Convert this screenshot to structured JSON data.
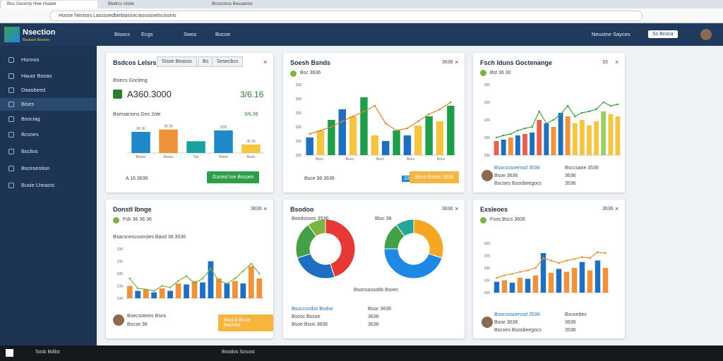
{
  "browser": {
    "tabs": [
      "Bisc Gecenty Hwe Hsaber",
      "Bledrcs Uiotie",
      "Blcorcorss Beuuanios"
    ],
    "url": "Hoose Nesisos  Lasssoedbiebiasioic/aoussoelsciosnis"
  },
  "app": {
    "brand": "Nsection",
    "brand_sub": "Bsoaoce Beoeon",
    "nav": [
      "Bisocs",
      "Ecgs",
      "Swos",
      "Bocoe"
    ],
    "user": "Neustne Sayces",
    "badge": "Ss Bcoca"
  },
  "sidebar": [
    "Hsnnos",
    "Hauor Bsoas",
    "Daasbeed",
    "Bises",
    "Bsociag",
    "Bcsnes",
    "Bsclios",
    "Bscesestion",
    "Busie Lheacts"
  ],
  "cards": [
    {
      "title": "Bsdcos Lelsrs",
      "tabs": [
        "Sisoe Beasos",
        "Bs",
        "Sesecbcs"
      ],
      "kpi_label": "Bsiecs Gocleng",
      "kpi": "A360.3000",
      "kpi_change": "3/6.16",
      "sub_label": "Bsesiacions Ges 2ote",
      "sub_value": "3/6.36",
      "footer": "A 16 3636",
      "button": "Gucesl Ioe Bscoes",
      "chart": {
        "type": "bar",
        "ylim": [
          0,
          60
        ],
        "categories": [
          "Bsoes",
          "Bsoes",
          "Tos",
          "Bioes",
          "Bsoe"
        ],
        "values": [
          45,
          50,
          25,
          48,
          18
        ],
        "value_labels": [
          "36 36",
          "36 36",
          "",
          "3/36",
          "36 36"
        ],
        "colors": [
          "#1e88c8",
          "#f0923a",
          "#1aa0a0",
          "#1e88c8",
          "#f5c542"
        ]
      }
    },
    {
      "title": "Soesh Bsnds",
      "meta": "3636",
      "sub_label": "Bsc 3636",
      "footer": "Bsce 36 3636",
      "button": "Bsco Eseoc 3836",
      "badge": "336",
      "chart": {
        "type": "bar",
        "ylim": [
          0,
          100
        ],
        "ytick_labels": [
          "336",
          "336",
          "336",
          "336",
          "336",
          "336"
        ],
        "categories": [
          "Bsco",
          "Bsco",
          "Bsco",
          "Bsco",
          "Bsco"
        ],
        "values": [
          25,
          35,
          50,
          65,
          55,
          82,
          28,
          20,
          35,
          28,
          42,
          55,
          48,
          70
        ],
        "colors": [
          "#1e6fc0",
          "#f5c542",
          "#1e9e4a",
          "#1e6fc0",
          "#f5c542",
          "#1e9e4a",
          "#f5c542",
          "#1e6fc0",
          "#1e9e4a",
          "#1e6fc0",
          "#f5c542",
          "#1e9e4a",
          "#f5c542",
          "#1e9e4a"
        ],
        "line": [
          30,
          35,
          40,
          48,
          55,
          62,
          70,
          45,
          35,
          38,
          48,
          58,
          65,
          75
        ],
        "line_color": "#d9822b"
      }
    },
    {
      "title": "Fsch Iduns Goctenange",
      "meta": "33",
      "sub_label": "Bst 36 30",
      "legend": [
        "Bsocsssoerssd 3536",
        "Bsoe 3636",
        "Bscoes Bsosbeegocs"
      ],
      "legend_values": [
        "Bsccsaoe 3536",
        "3636",
        "3536"
      ],
      "chart": {
        "type": "bar",
        "ylim": [
          0,
          100
        ],
        "ytick_labels": [
          "336",
          "336",
          "336",
          "336",
          "336"
        ],
        "values": [
          20,
          22,
          25,
          28,
          30,
          32,
          50,
          45,
          40,
          60,
          55,
          45,
          50,
          42,
          48,
          62,
          58,
          55
        ],
        "colors": [
          "#e8604c",
          "#1e6fc0",
          "#f0923a",
          "#1e6fc0",
          "#e8604c",
          "#1e6fc0",
          "#e8604c",
          "#1e6fc0",
          "#f0923a",
          "#1e6fc0",
          "#f0923a",
          "#f5c542",
          "#f5c542",
          "#f5c542",
          "#f5c542",
          "#9ccc65",
          "#f5c542",
          "#f5c542"
        ],
        "line": [
          25,
          28,
          30,
          35,
          38,
          40,
          62,
          45,
          50,
          58,
          70,
          55,
          60,
          62,
          65,
          75,
          70,
          72
        ],
        "line_color": "#43a047"
      }
    },
    {
      "title": "Donstl Ibnge",
      "meta": "3636",
      "sub_label": "Fsh 36 36 36",
      "sub_label2": "Bsacsnescoonsles Basd 36 3536",
      "legend": "Bsecsoteeis Bsns",
      "legend2": "Bscse 36",
      "button": "Bsocd Bcoe Bacoes",
      "chart": {
        "type": "bar",
        "ylim": [
          0,
          100
        ],
        "ytick_labels": [
          "336",
          "336",
          "336",
          "336",
          "336"
        ],
        "values": [
          25,
          15,
          18,
          12,
          20,
          15,
          30,
          28,
          35,
          32,
          75,
          40,
          30,
          35,
          30,
          65,
          40
        ],
        "colors": [
          "#f0923a",
          "#1e6fc0",
          "#f0923a",
          "#1e6fc0",
          "#f0923a",
          "#1e6fc0",
          "#f0923a",
          "#1e6fc0",
          "#f0923a",
          "#1e6fc0",
          "#1e6fc0",
          "#f0923a",
          "#1e6fc0",
          "#f0923a",
          "#1e6fc0",
          "#f0923a",
          "#f0923a"
        ],
        "line": [
          40,
          20,
          18,
          15,
          25,
          22,
          35,
          45,
          30,
          40,
          60,
          35,
          30,
          40,
          55,
          70,
          50
        ],
        "line_color": "#7cb342"
      }
    },
    {
      "title": "Bsodoo",
      "meta": "3636",
      "donut_labels": [
        "Boodssoos 3536",
        "Bloc 36"
      ],
      "caption": "Bsonsassobb Bsoec",
      "legend": [
        "Bsoccsodss Bsdse",
        "Bsosc Bssoe",
        "Bsoe Bsos 3836"
      ],
      "legend_values": [
        "Bsoc 3636",
        "3636",
        "3636"
      ],
      "chart": {
        "type": "donut",
        "donuts": [
          {
            "values": [
              45,
              25,
              20,
              10
            ],
            "colors": [
              "#e53935",
              "#1e6fc0",
              "#43a047",
              "#7cb342"
            ]
          },
          {
            "values": [
              30,
              45,
              15,
              10
            ],
            "colors": [
              "#f5a623",
              "#1e88e5",
              "#43a047",
              "#26a69a"
            ]
          }
        ]
      }
    },
    {
      "title": "Exsleoes",
      "meta": "3636",
      "sub_label": "Fsos Bscs 3606",
      "legend": [
        "Bsocsssoerssd 3536",
        "Bsoe 3636",
        "Bscoes Bsosbeegocs"
      ],
      "legend_values": [
        "Bscoebes",
        "3636",
        "3536"
      ],
      "chart": {
        "type": "bar",
        "ylim": [
          0,
          100
        ],
        "ytick_labels": [
          "336",
          "336",
          "336",
          "336",
          "336"
        ],
        "values": [
          22,
          25,
          20,
          30,
          28,
          35,
          80,
          40,
          48,
          42,
          50,
          62,
          45,
          65,
          50
        ],
        "colors": [
          "#1e6fc0",
          "#f0923a",
          "#1e6fc0",
          "#f0923a",
          "#1e6fc0",
          "#f0923a",
          "#1e6fc0",
          "#f0923a",
          "#1e6fc0",
          "#f0923a",
          "#f0923a",
          "#1e6fc0",
          "#f0923a",
          "#1e6fc0",
          "#f0923a"
        ],
        "line": [
          30,
          35,
          38,
          42,
          45,
          50,
          70,
          65,
          60,
          65,
          68,
          72,
          70,
          82,
          80
        ],
        "line_color": "#e0952b"
      }
    }
  ],
  "taskbar": {
    "search": "Sosk Bdilst",
    "app": "Bsodos Sosost"
  }
}
